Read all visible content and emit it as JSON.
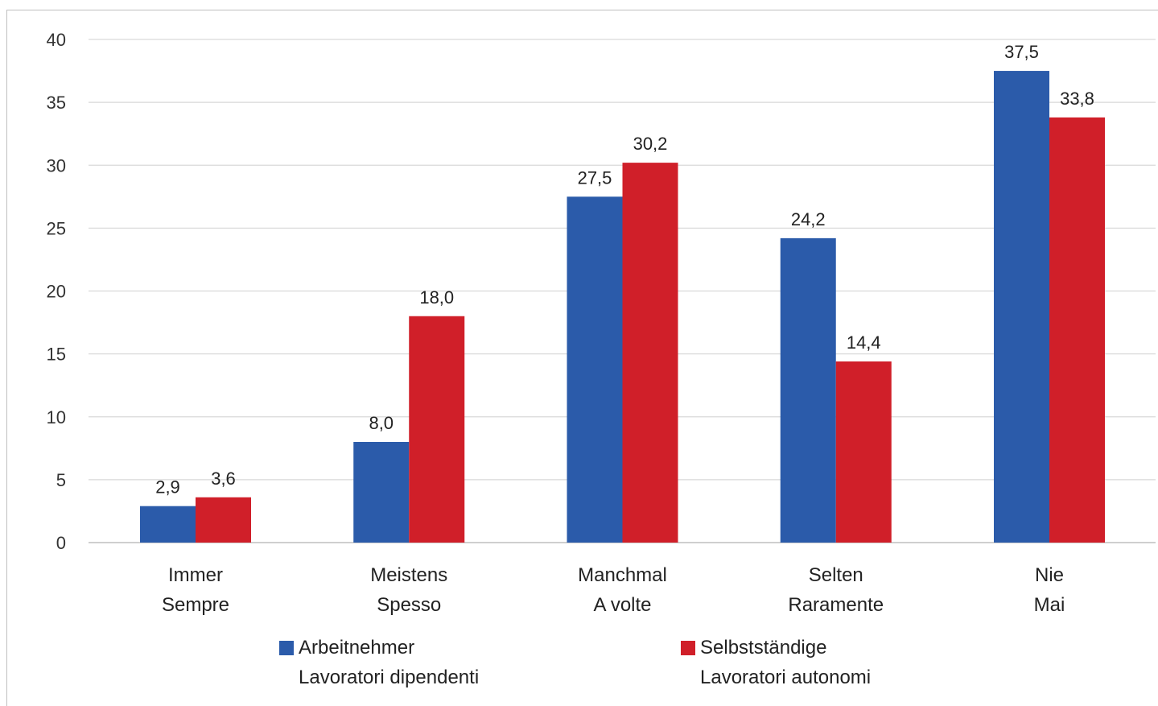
{
  "chart_data": {
    "type": "bar",
    "categories": [
      [
        "Immer",
        "Sempre"
      ],
      [
        "Meistens",
        "Spesso"
      ],
      [
        "Manchmal",
        "A volte"
      ],
      [
        "Selten",
        "Raramente"
      ],
      [
        "Nie",
        "Mai"
      ]
    ],
    "series": [
      {
        "name": "Arbeitnehmer",
        "name_it": "Lavoratori dipendenti",
        "color": "#2b5baa",
        "values": [
          2.9,
          8.0,
          27.5,
          24.2,
          37.5
        ],
        "labels": [
          "2,9",
          "8,0",
          "27,5",
          "24,2",
          "37,5"
        ]
      },
      {
        "name": "Selbstständige",
        "name_it": "Lavoratori autonomi",
        "color": "#d01f29",
        "values": [
          3.6,
          18.0,
          30.2,
          14.4,
          33.8
        ],
        "labels": [
          "3,6",
          "18,0",
          "30,2",
          "14,4",
          "33,8"
        ]
      }
    ],
    "ylim": [
      0,
      40
    ],
    "yticks": [
      0,
      5,
      10,
      15,
      20,
      25,
      30,
      35,
      40
    ],
    "grid": true,
    "legend_position": "bottom"
  }
}
